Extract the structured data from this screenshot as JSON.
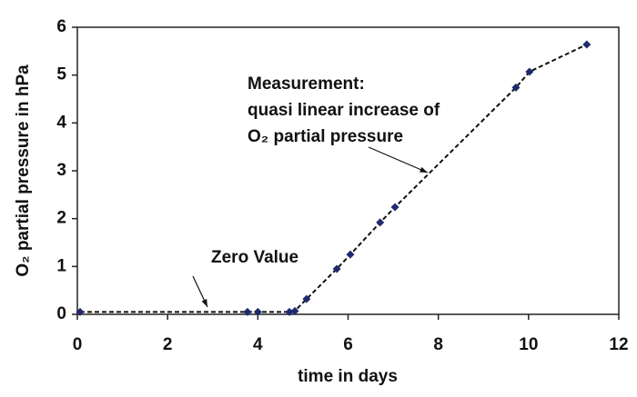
{
  "chart_data": {
    "type": "line",
    "x_label": "time in days",
    "y_label": "O₂ partial pressure in hPa",
    "x": [
      0.06,
      3.77,
      4.0,
      4.7,
      4.82,
      5.08,
      5.75,
      6.05,
      6.71,
      7.04,
      9.72,
      10.02,
      11.29
    ],
    "series": [
      {
        "color": "#1f2a6e",
        "values": [
          0.05,
          0.05,
          0.05,
          0.05,
          0.07,
          0.32,
          0.95,
          1.25,
          1.92,
          2.24,
          4.74,
          5.07,
          5.64
        ]
      }
    ],
    "xlim": [
      0,
      12
    ],
    "xticks": [
      0,
      2,
      4,
      6,
      8,
      10,
      12
    ],
    "ylim": [
      0,
      6
    ],
    "yticks": [
      0,
      1,
      2,
      3,
      4,
      5,
      6
    ],
    "grid": false,
    "annotations": [
      {
        "lines": [
          "Zero Value"
        ]
      },
      {
        "lines": [
          "Measurement:",
          "quasi linear increase of",
          "O₂ partial pressure"
        ]
      }
    ]
  }
}
